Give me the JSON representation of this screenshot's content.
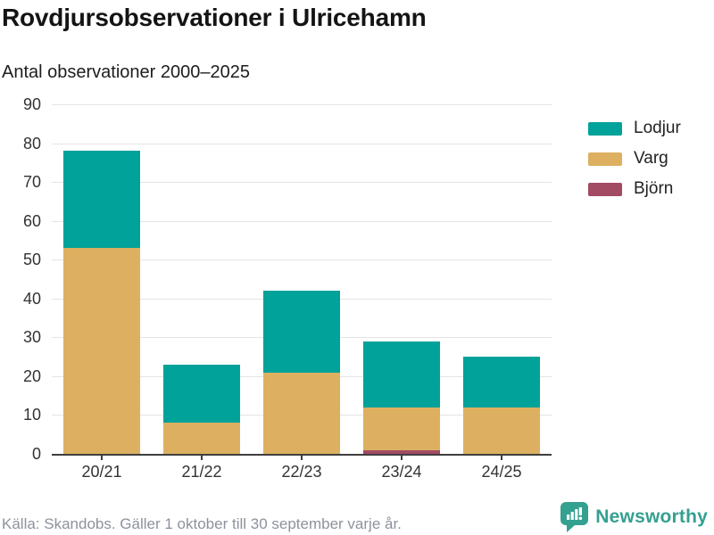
{
  "title": "Rovdjursobservationer i Ulricehamn",
  "subtitle": "Antal observationer 2000–2025",
  "footer": {
    "source": "Källa: Skandobs. Gäller 1 oktober till 30 september varje år.",
    "brand": "Newsworthy"
  },
  "colors": {
    "lodjur": "#00a299",
    "varg": "#ddb061",
    "bjorn": "#a34a64",
    "brand_teal": "#34a090",
    "grid": "#e4e4e4",
    "axis": "#3f3f3f",
    "text_dark": "#141414",
    "text_muted": "#8d929c"
  },
  "chart_data": {
    "type": "bar",
    "stacked": true,
    "title": "Rovdjursobservationer i Ulricehamn",
    "subtitle": "Antal observationer 2000–2025",
    "categories": [
      "20/21",
      "21/22",
      "22/23",
      "23/24",
      "24/25"
    ],
    "series": [
      {
        "name": "Björn",
        "color": "#a34a64",
        "values": [
          0,
          0,
          0,
          1,
          0
        ]
      },
      {
        "name": "Varg",
        "color": "#ddb061",
        "values": [
          53,
          8,
          21,
          11,
          12
        ]
      },
      {
        "name": "Lodjur",
        "color": "#00a299",
        "values": [
          25,
          15,
          21,
          17,
          13
        ]
      }
    ],
    "totals": [
      78,
      23,
      42,
      29,
      25
    ],
    "legend": [
      {
        "label": "Lodjur",
        "color": "#00a299"
      },
      {
        "label": "Varg",
        "color": "#ddb061"
      },
      {
        "label": "Björn",
        "color": "#a34a64"
      }
    ],
    "xlabel": "",
    "ylabel": "Antal observationer",
    "ylim": [
      0,
      90
    ],
    "ytick_step": 10,
    "grid": "horizontal",
    "legend_position": "right"
  }
}
